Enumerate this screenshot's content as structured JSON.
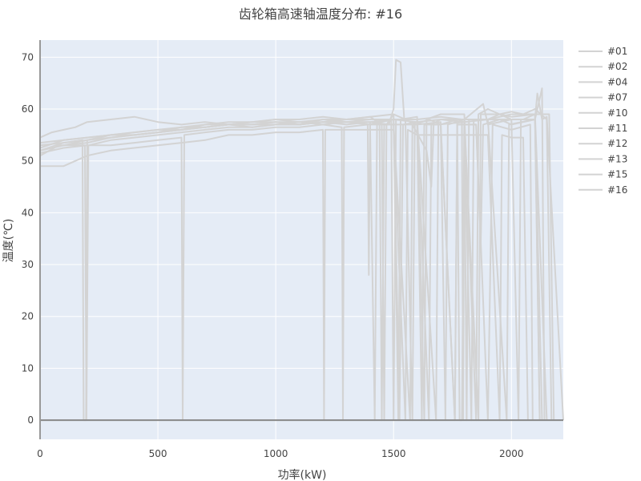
{
  "chart_data": {
    "type": "line",
    "title": "齿轮箱高速轴温度分布: #16",
    "xlabel": "功率(kW)",
    "ylabel": "温度(℃)",
    "xlim": [
      0,
      2220
    ],
    "ylim": [
      -3.7,
      73.3
    ],
    "xticks": [
      0,
      500,
      1000,
      1500,
      2000
    ],
    "yticks": [
      0,
      10,
      20,
      30,
      40,
      50,
      60,
      70
    ],
    "grid": true,
    "legend_position": "right",
    "colors": {
      "series": "#d3d3d3",
      "background": "#e5ecf6",
      "zero_line": "#888888",
      "grid": "#ffffff"
    },
    "series": [
      {
        "name": "#01",
        "points": [
          [
            0,
            52
          ],
          [
            100,
            53.5
          ],
          [
            180,
            54
          ],
          [
            185,
            0
          ],
          [
            195,
            0
          ],
          [
            200,
            54
          ],
          [
            300,
            55
          ],
          [
            400,
            55.5
          ],
          [
            500,
            56
          ],
          [
            600,
            56.5
          ],
          [
            700,
            57
          ],
          [
            800,
            57.5
          ],
          [
            900,
            57.5
          ],
          [
            1000,
            58
          ],
          [
            1100,
            57.5
          ],
          [
            1200,
            58
          ],
          [
            1300,
            58
          ],
          [
            1400,
            58.5
          ],
          [
            1450,
            57
          ],
          [
            1460,
            0
          ],
          [
            1470,
            57
          ],
          [
            1500,
            59
          ],
          [
            1550,
            58
          ],
          [
            1580,
            0
          ],
          [
            1590,
            57
          ],
          [
            1650,
            58
          ],
          [
            1700,
            57
          ],
          [
            1770,
            58
          ],
          [
            1780,
            0
          ],
          [
            1790,
            0
          ],
          [
            1800,
            58
          ],
          [
            1900,
            58
          ],
          [
            1950,
            59
          ],
          [
            2000,
            58
          ],
          [
            2050,
            58
          ],
          [
            2100,
            59
          ],
          [
            2120,
            0
          ]
        ]
      },
      {
        "name": "#02",
        "points": [
          [
            0,
            54.5
          ],
          [
            50,
            55.5
          ],
          [
            100,
            56
          ],
          [
            150,
            56.5
          ],
          [
            200,
            57.5
          ],
          [
            300,
            58
          ],
          [
            400,
            58.5
          ],
          [
            500,
            57.5
          ],
          [
            600,
            57
          ],
          [
            700,
            57.5
          ],
          [
            800,
            57
          ],
          [
            900,
            57.5
          ],
          [
            1000,
            58
          ],
          [
            1100,
            58
          ],
          [
            1200,
            58.5
          ],
          [
            1300,
            58
          ],
          [
            1400,
            58.5
          ],
          [
            1500,
            59
          ],
          [
            1520,
            0
          ],
          [
            1530,
            58
          ],
          [
            1600,
            58.5
          ],
          [
            1630,
            0
          ],
          [
            1640,
            58
          ],
          [
            1700,
            59
          ],
          [
            1800,
            59
          ],
          [
            1850,
            0
          ],
          [
            1860,
            59
          ],
          [
            1900,
            60
          ],
          [
            1950,
            59
          ],
          [
            2000,
            59.5
          ],
          [
            2050,
            59
          ],
          [
            2100,
            60
          ],
          [
            2150,
            58
          ],
          [
            2170,
            0
          ]
        ]
      },
      {
        "name": "#04",
        "points": [
          [
            0,
            49
          ],
          [
            50,
            49
          ],
          [
            100,
            49
          ],
          [
            150,
            50
          ],
          [
            200,
            51
          ],
          [
            300,
            52
          ],
          [
            400,
            52.5
          ],
          [
            500,
            53
          ],
          [
            600,
            53.5
          ],
          [
            700,
            54
          ],
          [
            800,
            55
          ],
          [
            900,
            55
          ],
          [
            1000,
            55.5
          ],
          [
            1100,
            55.5
          ],
          [
            1200,
            56
          ],
          [
            1205,
            0
          ],
          [
            1210,
            56
          ],
          [
            1300,
            56
          ],
          [
            1400,
            56
          ],
          [
            1500,
            56
          ],
          [
            1550,
            0
          ],
          [
            1560,
            56
          ],
          [
            1600,
            55
          ],
          [
            1700,
            55
          ],
          [
            1800,
            55
          ],
          [
            1900,
            55
          ],
          [
            1950,
            0
          ],
          [
            1960,
            55
          ],
          [
            2000,
            54.5
          ],
          [
            2050,
            54.5
          ],
          [
            2070,
            0
          ]
        ]
      },
      {
        "name": "#07",
        "points": [
          [
            0,
            51.5
          ],
          [
            100,
            52.5
          ],
          [
            200,
            53
          ],
          [
            300,
            53
          ],
          [
            400,
            53.5
          ],
          [
            500,
            54
          ],
          [
            600,
            54.5
          ],
          [
            605,
            0
          ],
          [
            612,
            55
          ],
          [
            700,
            55.5
          ],
          [
            800,
            56
          ],
          [
            900,
            56
          ],
          [
            1000,
            56.5
          ],
          [
            1100,
            56.5
          ],
          [
            1200,
            57
          ],
          [
            1280,
            56.5
          ],
          [
            1285,
            0
          ],
          [
            1290,
            56.5
          ],
          [
            1390,
            57
          ],
          [
            1395,
            28
          ],
          [
            1400,
            57
          ],
          [
            1500,
            57
          ],
          [
            1600,
            57
          ],
          [
            1620,
            0
          ],
          [
            1630,
            57
          ],
          [
            1700,
            57
          ],
          [
            1760,
            0
          ],
          [
            1770,
            57
          ],
          [
            1850,
            57
          ],
          [
            1900,
            0
          ],
          [
            1920,
            57
          ],
          [
            2000,
            56
          ],
          [
            2080,
            57
          ],
          [
            2090,
            0
          ]
        ]
      },
      {
        "name": "#10",
        "points": [
          [
            0,
            52
          ],
          [
            100,
            53
          ],
          [
            200,
            54
          ],
          [
            300,
            54.5
          ],
          [
            400,
            55
          ],
          [
            500,
            55.5
          ],
          [
            600,
            56
          ],
          [
            700,
            56.5
          ],
          [
            800,
            57
          ],
          [
            900,
            57
          ],
          [
            1000,
            57.5
          ],
          [
            1100,
            57.5
          ],
          [
            1200,
            57
          ],
          [
            1300,
            57.5
          ],
          [
            1400,
            57.5
          ],
          [
            1420,
            0
          ],
          [
            1430,
            58
          ],
          [
            1500,
            58
          ],
          [
            1525,
            0
          ],
          [
            1540,
            57
          ],
          [
            1600,
            57.5
          ],
          [
            1650,
            0
          ],
          [
            1660,
            57
          ],
          [
            1700,
            58
          ],
          [
            1800,
            58
          ],
          [
            1830,
            0
          ],
          [
            1840,
            58
          ],
          [
            1900,
            58
          ],
          [
            2000,
            58
          ],
          [
            2030,
            0
          ],
          [
            2040,
            58
          ],
          [
            2100,
            58
          ],
          [
            2130,
            64
          ],
          [
            2140,
            0
          ]
        ]
      },
      {
        "name": "#11",
        "points": [
          [
            0,
            53
          ],
          [
            100,
            53.5
          ],
          [
            200,
            54
          ],
          [
            300,
            55
          ],
          [
            400,
            55
          ],
          [
            500,
            55.5
          ],
          [
            600,
            56
          ],
          [
            700,
            56.5
          ],
          [
            800,
            57
          ],
          [
            900,
            56.5
          ],
          [
            1000,
            57
          ],
          [
            1100,
            57
          ],
          [
            1200,
            57.5
          ],
          [
            1300,
            57
          ],
          [
            1400,
            57.5
          ],
          [
            1480,
            57
          ],
          [
            1500,
            60
          ],
          [
            1510,
            69.5
          ],
          [
            1530,
            69
          ],
          [
            1545,
            58
          ],
          [
            1600,
            57
          ],
          [
            1700,
            57.5
          ],
          [
            1720,
            0
          ],
          [
            1730,
            57
          ],
          [
            1800,
            58
          ],
          [
            1880,
            61
          ],
          [
            1900,
            57
          ],
          [
            2000,
            58
          ],
          [
            2100,
            58
          ],
          [
            2120,
            0
          ]
        ]
      },
      {
        "name": "#12",
        "points": [
          [
            0,
            51
          ],
          [
            80,
            53
          ],
          [
            190,
            53
          ],
          [
            197,
            0
          ],
          [
            205,
            53
          ],
          [
            300,
            54
          ],
          [
            400,
            54.5
          ],
          [
            500,
            55
          ],
          [
            600,
            55.5
          ],
          [
            700,
            56
          ],
          [
            800,
            56.5
          ],
          [
            900,
            56.5
          ],
          [
            1000,
            57
          ],
          [
            1100,
            57
          ],
          [
            1200,
            57.5
          ],
          [
            1300,
            57.5
          ],
          [
            1400,
            57
          ],
          [
            1500,
            58
          ],
          [
            1600,
            58
          ],
          [
            1680,
            0
          ],
          [
            1690,
            57
          ],
          [
            1800,
            57.5
          ],
          [
            1900,
            58
          ],
          [
            1980,
            0
          ],
          [
            1990,
            57
          ],
          [
            2100,
            58
          ],
          [
            2110,
            63
          ],
          [
            2130,
            58
          ],
          [
            2150,
            58.5
          ],
          [
            2220,
            0
          ]
        ]
      },
      {
        "name": "#13",
        "points": [
          [
            0,
            52.5
          ],
          [
            100,
            54
          ],
          [
            200,
            54.5
          ],
          [
            300,
            55
          ],
          [
            400,
            55
          ],
          [
            500,
            55.5
          ],
          [
            600,
            56
          ],
          [
            700,
            56.5
          ],
          [
            800,
            57
          ],
          [
            900,
            57
          ],
          [
            1000,
            57
          ],
          [
            1100,
            57.5
          ],
          [
            1200,
            57.5
          ],
          [
            1300,
            57.5
          ],
          [
            1400,
            57.5
          ],
          [
            1500,
            58
          ],
          [
            1600,
            57.5
          ],
          [
            1700,
            58
          ],
          [
            1800,
            57.5
          ],
          [
            1810,
            0
          ],
          [
            1820,
            58
          ],
          [
            1900,
            58
          ],
          [
            2000,
            59
          ],
          [
            2100,
            59
          ],
          [
            2150,
            0
          ]
        ]
      },
      {
        "name": "#15",
        "points": [
          [
            0,
            53.5
          ],
          [
            100,
            54
          ],
          [
            200,
            54.5
          ],
          [
            300,
            55
          ],
          [
            400,
            55.5
          ],
          [
            500,
            56
          ],
          [
            600,
            56
          ],
          [
            700,
            57
          ],
          [
            800,
            57
          ],
          [
            900,
            57.5
          ],
          [
            1000,
            57.5
          ],
          [
            1100,
            57
          ],
          [
            1200,
            58
          ],
          [
            1300,
            57.5
          ],
          [
            1400,
            58
          ],
          [
            1440,
            58
          ],
          [
            1450,
            0
          ],
          [
            1460,
            57
          ],
          [
            1500,
            57
          ],
          [
            1570,
            0
          ],
          [
            1580,
            57
          ],
          [
            1640,
            52
          ],
          [
            1660,
            45
          ],
          [
            1670,
            57
          ],
          [
            1700,
            57
          ],
          [
            1760,
            0
          ],
          [
            1770,
            57
          ],
          [
            1850,
            57
          ],
          [
            1870,
            34
          ],
          [
            1880,
            57
          ],
          [
            1950,
            58
          ],
          [
            2000,
            57
          ],
          [
            2100,
            58
          ],
          [
            2130,
            0
          ]
        ]
      },
      {
        "name": "#16",
        "points": [
          [
            0,
            52
          ],
          [
            100,
            53
          ],
          [
            200,
            53.5
          ],
          [
            300,
            54.5
          ],
          [
            400,
            55
          ],
          [
            500,
            55.5
          ],
          [
            600,
            56.5
          ],
          [
            700,
            56.5
          ],
          [
            800,
            57
          ],
          [
            900,
            57
          ],
          [
            1000,
            57.5
          ],
          [
            1100,
            57
          ],
          [
            1200,
            57.5
          ],
          [
            1300,
            58
          ],
          [
            1400,
            58
          ],
          [
            1490,
            58
          ],
          [
            1500,
            0
          ],
          [
            1510,
            58
          ],
          [
            1600,
            58
          ],
          [
            1700,
            58.5
          ],
          [
            1790,
            58
          ],
          [
            1795,
            0
          ],
          [
            1800,
            58
          ],
          [
            1860,
            0
          ],
          [
            1870,
            59
          ],
          [
            1950,
            59
          ],
          [
            2000,
            58.5
          ],
          [
            2100,
            59
          ],
          [
            2160,
            59
          ],
          [
            2180,
            0
          ]
        ]
      }
    ]
  }
}
